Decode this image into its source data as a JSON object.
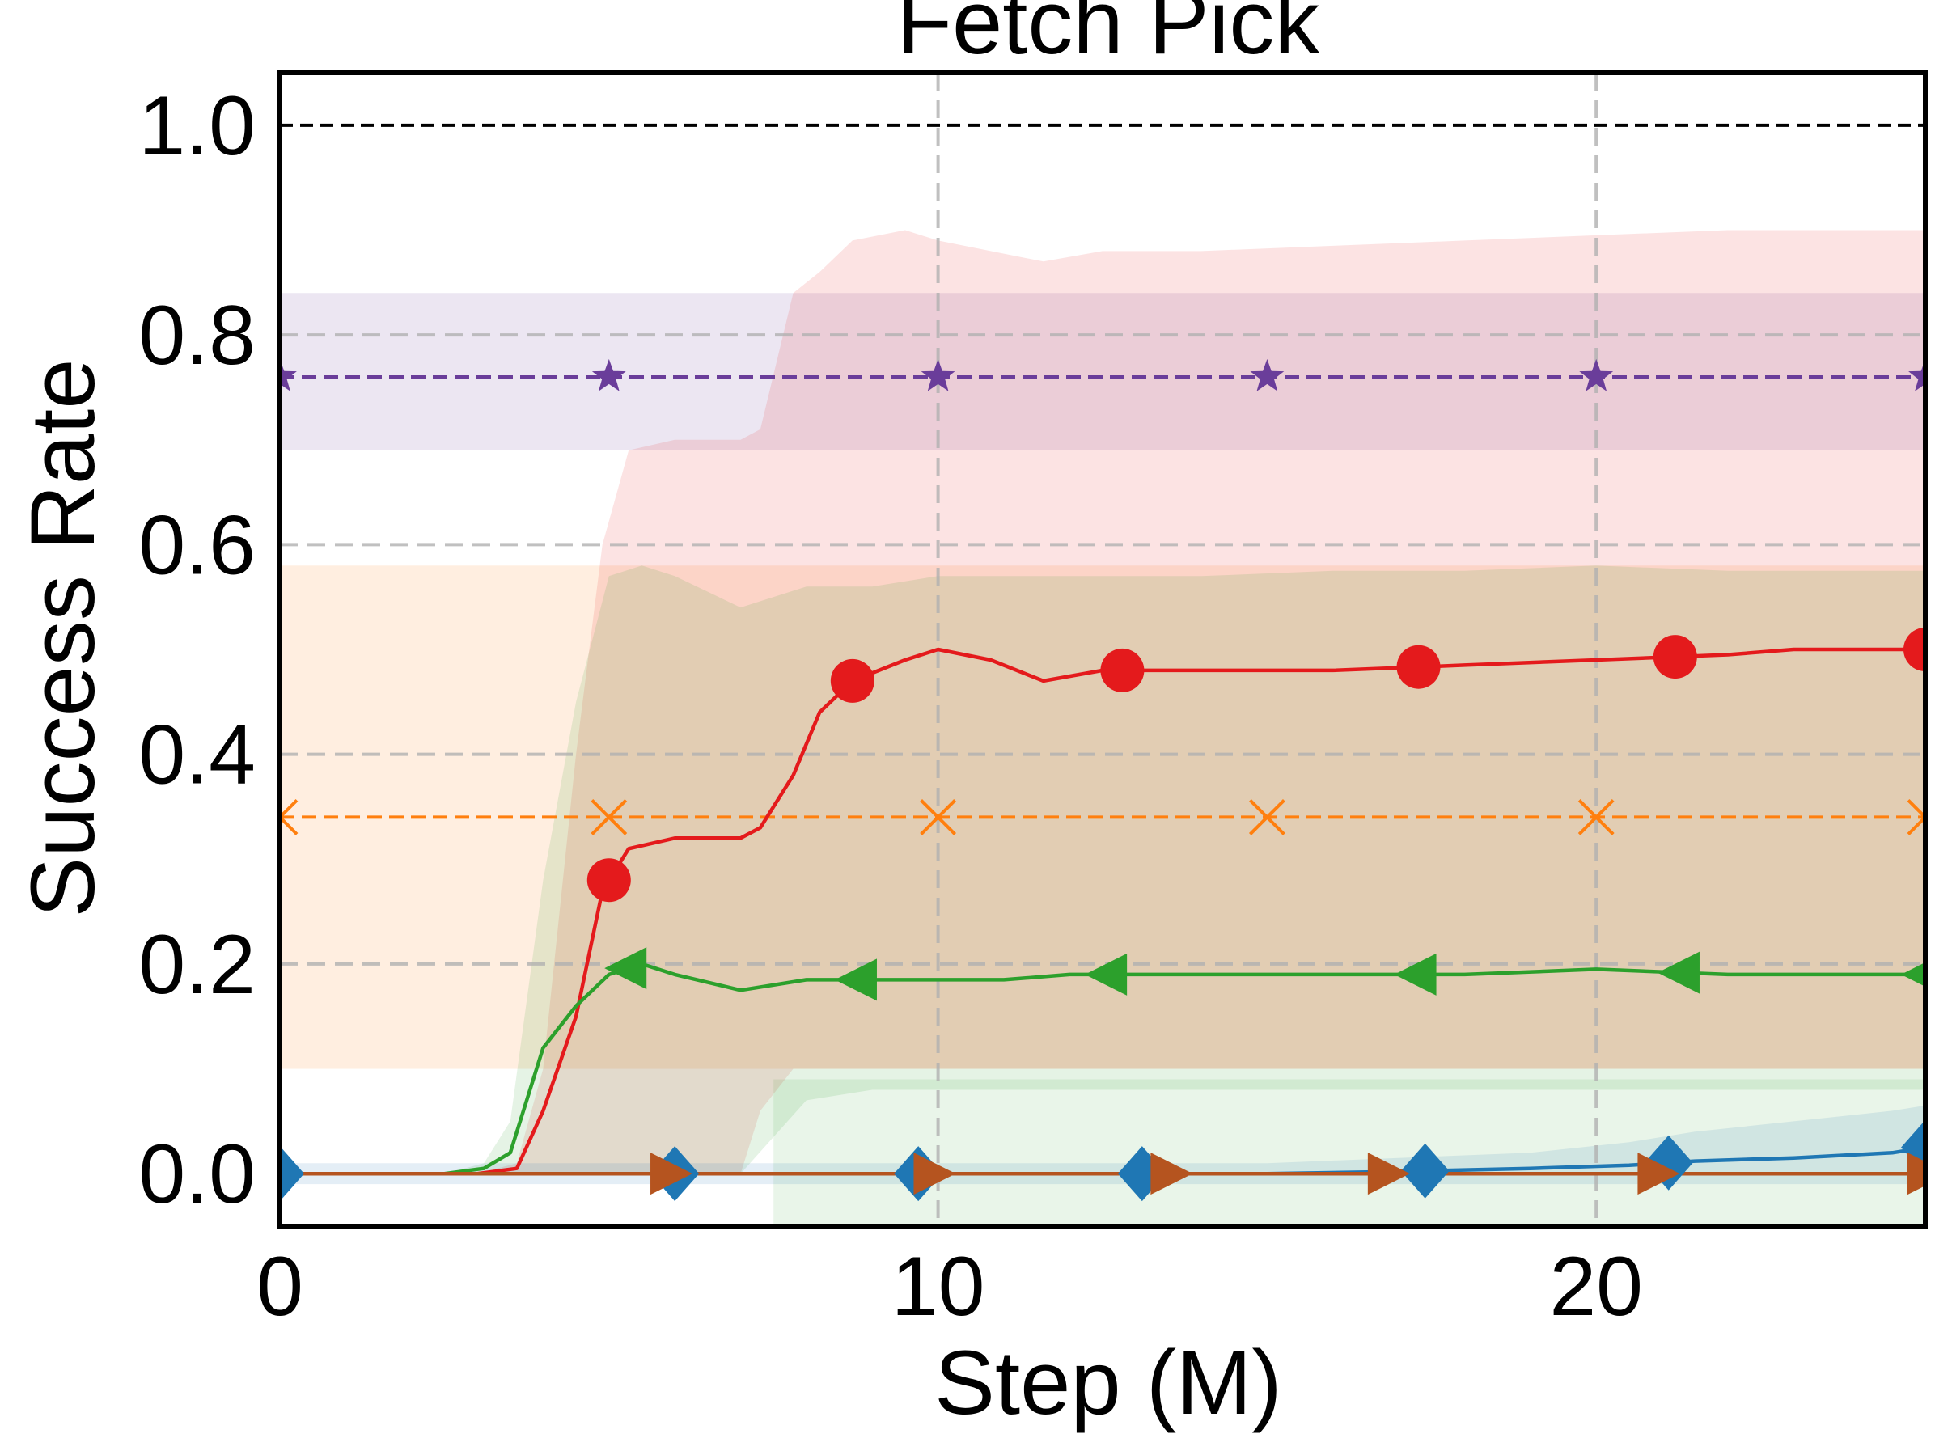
{
  "chart_data": {
    "type": "line",
    "title": "Fetch Pick",
    "xlabel": "Step (M)",
    "ylabel": "Success Rate",
    "xlim": [
      0,
      25
    ],
    "ylim": [
      -0.05,
      1.05
    ],
    "x_ticks": [
      "0",
      "10",
      "20"
    ],
    "x_tick_values": [
      0,
      10,
      20
    ],
    "y_ticks": [
      "0.0",
      "0.2",
      "0.4",
      "0.6",
      "0.8",
      "1.0"
    ],
    "y_tick_values": [
      0.0,
      0.2,
      0.4,
      0.6,
      0.8,
      1.0
    ],
    "grid": "dashed",
    "legend": "none",
    "reference_line": {
      "y": 1.0,
      "color": "#000000",
      "style": "dashed"
    },
    "series": [
      {
        "kind": "band-line",
        "color": "#6a3d9a",
        "marker": "star",
        "style": "dashed",
        "y": 0.76,
        "band": [
          0.69,
          0.84
        ],
        "marker_x": [
          0,
          5,
          10,
          15,
          20,
          25
        ]
      },
      {
        "kind": "band-line",
        "color": "#ff7f0e",
        "marker": "x",
        "style": "dashed",
        "y": 0.34,
        "band": [
          0.1,
          0.58
        ],
        "marker_x": [
          0,
          5,
          10,
          15,
          20,
          25
        ]
      },
      {
        "kind": "curve",
        "color": "#e41a1c",
        "marker": "circle",
        "x": [
          0,
          3,
          3.6,
          4,
          4.5,
          4.9,
          5.3,
          6,
          7,
          7.3,
          7.8,
          8.2,
          8.7,
          9.5,
          10,
          10.8,
          11.6,
          12.5,
          14,
          16,
          18,
          20,
          22,
          23,
          24,
          25
        ],
        "y": [
          0,
          0,
          0.005,
          0.06,
          0.15,
          0.27,
          0.31,
          0.32,
          0.32,
          0.33,
          0.38,
          0.44,
          0.47,
          0.49,
          0.5,
          0.49,
          0.47,
          0.48,
          0.48,
          0.48,
          0.485,
          0.49,
          0.495,
          0.5,
          0.5,
          0.5
        ],
        "band_lower": [
          0,
          0,
          0,
          0,
          0,
          0,
          0,
          0,
          0,
          0.06,
          0.1,
          0.1,
          0.1,
          0.1,
          0.1,
          0.1,
          0.1,
          0.1,
          0.1,
          0.1,
          0.1,
          0.1,
          0.1,
          0.1,
          0.1,
          0.1
        ],
        "band_upper": [
          0,
          0,
          0.01,
          0.1,
          0.4,
          0.6,
          0.69,
          0.7,
          0.7,
          0.71,
          0.84,
          0.86,
          0.89,
          0.9,
          0.89,
          0.88,
          0.87,
          0.88,
          0.88,
          0.885,
          0.89,
          0.895,
          0.9,
          0.9,
          0.9,
          0.9
        ],
        "marker_x": [
          5,
          8.7,
          12.8,
          17.3,
          21.2,
          25
        ]
      },
      {
        "kind": "curve",
        "color": "#2ca02c",
        "marker": "triangle-left",
        "x": [
          0,
          2.5,
          3.1,
          3.5,
          4,
          4.5,
          5,
          5.5,
          6,
          7,
          8,
          9,
          10,
          11,
          12,
          14,
          16,
          18,
          20,
          22,
          25
        ],
        "y": [
          0,
          0,
          0.005,
          0.02,
          0.12,
          0.16,
          0.19,
          0.2,
          0.19,
          0.175,
          0.185,
          0.185,
          0.185,
          0.185,
          0.19,
          0.19,
          0.19,
          0.19,
          0.195,
          0.19,
          0.19
        ],
        "band_lower": [
          0,
          0,
          0,
          0,
          0,
          0,
          0,
          0,
          0,
          0,
          0.07,
          0.08,
          0.08,
          0.08,
          0.08,
          0.08,
          0.08,
          0.08,
          0.08,
          0.08,
          0.08
        ],
        "band_upper": [
          0,
          0,
          0.01,
          0.05,
          0.28,
          0.45,
          0.57,
          0.58,
          0.57,
          0.54,
          0.56,
          0.56,
          0.57,
          0.57,
          0.57,
          0.57,
          0.575,
          0.575,
          0.58,
          0.575,
          0.575
        ],
        "marker_x": [
          5.3,
          8.8,
          12.6,
          17.3,
          21.3,
          25
        ]
      },
      {
        "kind": "curve",
        "color": "#1f77b4",
        "marker": "diamond",
        "x": [
          0,
          5,
          10,
          15,
          17,
          19,
          20.5,
          21.5,
          23,
          24.5,
          25
        ],
        "y": [
          0,
          0,
          0,
          0,
          0.002,
          0.005,
          0.008,
          0.012,
          0.015,
          0.02,
          0.025
        ],
        "band_lower": [
          -0.01,
          -0.01,
          -0.01,
          -0.01,
          -0.01,
          -0.01,
          -0.01,
          -0.01,
          -0.01,
          -0.01,
          -0.01
        ],
        "band_upper": [
          0.01,
          0.01,
          0.01,
          0.01,
          0.015,
          0.02,
          0.03,
          0.04,
          0.05,
          0.06,
          0.065
        ],
        "marker_x": [
          0,
          6,
          9.7,
          13.1,
          17.4,
          21.1,
          25
        ]
      },
      {
        "kind": "curve",
        "color": "#b5541f",
        "marker": "triangle-right",
        "x": [
          0,
          25
        ],
        "y": [
          0,
          0
        ],
        "marker_x": [
          5.9,
          9.9,
          13.5,
          16.8,
          20.9,
          25
        ]
      }
    ],
    "background_bands": [
      {
        "color": "#2ca02c",
        "x_from": 7.5,
        "x_to": 25,
        "band": [
          -0.05,
          0.09
        ]
      }
    ]
  }
}
